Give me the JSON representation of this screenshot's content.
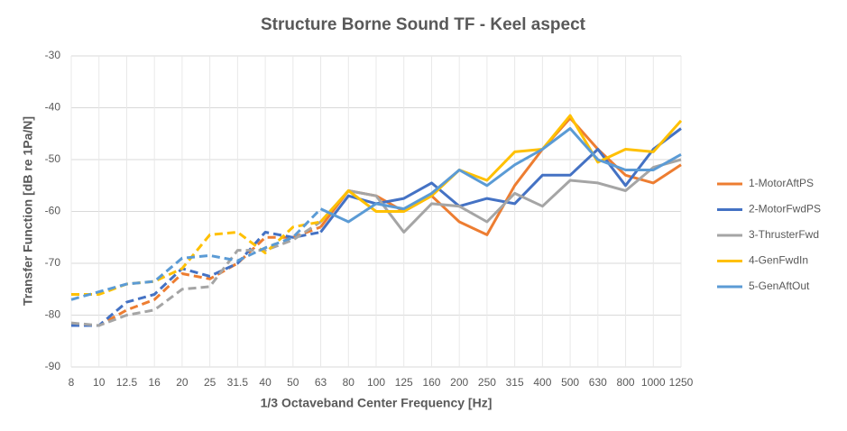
{
  "chart_data": {
    "type": "line",
    "title": "Structure Borne Sound TF - Keel aspect",
    "x_label": "1/3 Octaveband Center Frequency [Hz]",
    "y_label": "Transfer Function [dB re 1Pa/N]",
    "categories": [
      "8",
      "10",
      "12.5",
      "16",
      "20",
      "25",
      "31.5",
      "40",
      "50",
      "63",
      "80",
      "100",
      "125",
      "160",
      "200",
      "250",
      "315",
      "400",
      "500",
      "630",
      "800",
      "1000",
      "1250"
    ],
    "ylim": [
      -90,
      -30
    ],
    "yticks": [
      -90,
      -80,
      -70,
      -60,
      -50,
      -40,
      -30
    ],
    "grid": true,
    "legend": "right",
    "series": [
      {
        "name": "1-MotorAftPS",
        "color": "#ed7d31",
        "values": [
          -82,
          -82,
          -79,
          -77,
          -72,
          -73,
          -70,
          -65,
          -65,
          -63,
          -56,
          -57,
          -60,
          -57,
          -62,
          -64.5,
          -55,
          -48,
          -42,
          -48,
          -53,
          -54.5,
          -51
        ]
      },
      {
        "name": "2-MotorFwdPS",
        "color": "#4472c4",
        "values": [
          -82,
          -82,
          -77.5,
          -76,
          -71,
          -72.5,
          -70,
          -64,
          -65,
          -64,
          -57,
          -58.5,
          -57.5,
          -54.5,
          -59,
          -57.5,
          -58.5,
          -53,
          -53,
          -48,
          -55,
          -48,
          -44
        ]
      },
      {
        "name": "3-ThrusterFwd",
        "color": "#a5a5a5",
        "values": [
          -81.5,
          -82,
          -80,
          -79,
          -75,
          -74.5,
          -67.5,
          -67.5,
          -65.5,
          -62,
          -56,
          -57,
          -64,
          -58.5,
          -59,
          -62,
          -56.5,
          -59,
          -54,
          -54.5,
          -56,
          -51.5,
          -50
        ]
      },
      {
        "name": "4-GenFwdIn",
        "color": "#ffc000",
        "values": [
          -76,
          -76,
          -74,
          -73.5,
          -71,
          -64.5,
          -64,
          -68,
          -63,
          -62,
          -56,
          -60,
          -60,
          -57,
          -52,
          -54,
          -48.5,
          -48,
          -41.5,
          -50.5,
          -48,
          -48.5,
          -42.5
        ]
      },
      {
        "name": "5-GenAftOut",
        "color": "#5b9bd5",
        "values": [
          -77,
          -75.5,
          -74,
          -73.5,
          -69,
          -68.5,
          -69.5,
          -67,
          -65,
          -59.5,
          -62,
          -58.5,
          -59.5,
          -56.5,
          -52,
          -55,
          -51,
          -48,
          -44,
          -50,
          -52,
          -52,
          -49
        ]
      }
    ]
  }
}
